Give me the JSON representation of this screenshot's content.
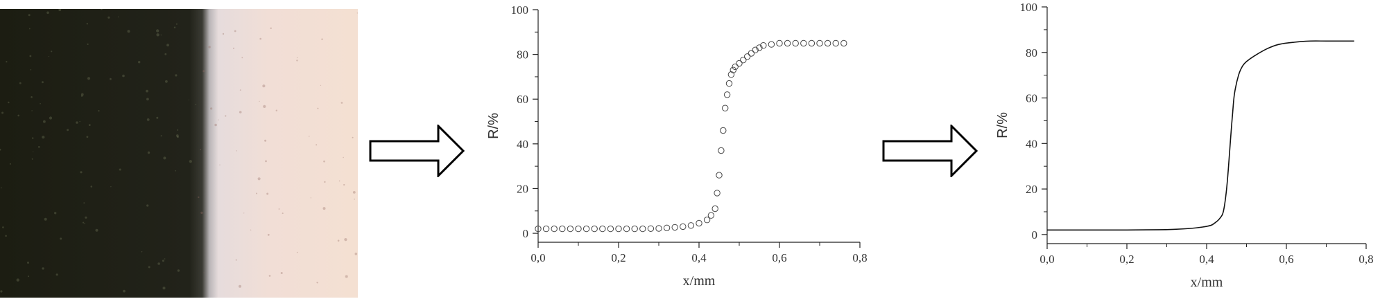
{
  "figure": {
    "photo": {
      "description_icon": "sample-edge-photo",
      "dark_color": "#1e1f14",
      "light_color": "#f0ddd4"
    },
    "arrow_icon": "right-arrow-outline-icon"
  },
  "chart_data": [
    {
      "type": "scatter",
      "xlabel": "x/mm",
      "ylabel": "R/%",
      "xlim": [
        0.0,
        0.8
      ],
      "ylim": [
        -4,
        100
      ],
      "xticks": [
        "0,0",
        "0,2",
        "0,4",
        "0,6",
        "0,8"
      ],
      "yticks": [
        "0",
        "20",
        "40",
        "60",
        "80",
        "100"
      ],
      "marker": "open-circle",
      "series": [
        {
          "x": [
            0.0,
            0.02,
            0.04,
            0.06,
            0.08,
            0.1,
            0.12,
            0.14,
            0.16,
            0.18,
            0.2,
            0.22,
            0.24,
            0.26,
            0.28,
            0.3,
            0.32,
            0.34,
            0.36,
            0.38,
            0.4,
            0.42,
            0.43,
            0.44,
            0.445,
            0.45,
            0.455,
            0.46,
            0.465,
            0.47,
            0.475,
            0.48,
            0.485,
            0.49,
            0.5,
            0.51,
            0.52,
            0.53,
            0.54,
            0.55,
            0.56,
            0.58,
            0.6,
            0.62,
            0.64,
            0.66,
            0.68,
            0.7,
            0.72,
            0.74,
            0.76
          ],
          "y": [
            2,
            2,
            2,
            2,
            2,
            2,
            2,
            2,
            2,
            2,
            2,
            2,
            2,
            2,
            2.1,
            2.2,
            2.4,
            2.7,
            3,
            3.5,
            4.5,
            6,
            8,
            11,
            18,
            26,
            37,
            46,
            56,
            62,
            67,
            71,
            73,
            74.5,
            76,
            77.5,
            79,
            80.5,
            82,
            83,
            84,
            84.5,
            85,
            85,
            85,
            85,
            85,
            85,
            85,
            85,
            85
          ]
        }
      ]
    },
    {
      "type": "line",
      "xlabel": "x/mm",
      "ylabel": "R/%",
      "xlim": [
        0.0,
        0.8
      ],
      "ylim": [
        -4,
        100
      ],
      "xticks": [
        "0,0",
        "0,2",
        "0,4",
        "0,6",
        "0,8"
      ],
      "yticks": [
        "0",
        "20",
        "40",
        "60",
        "80",
        "100"
      ],
      "series": [
        {
          "x": [
            0.0,
            0.1,
            0.2,
            0.28,
            0.32,
            0.36,
            0.39,
            0.41,
            0.42,
            0.43,
            0.44,
            0.445,
            0.45,
            0.455,
            0.46,
            0.465,
            0.47,
            0.48,
            0.49,
            0.5,
            0.52,
            0.55,
            0.58,
            0.62,
            0.66,
            0.7,
            0.74,
            0.77
          ],
          "y": [
            2,
            2,
            2,
            2.1,
            2.3,
            2.7,
            3.3,
            4,
            5,
            6.5,
            9,
            13,
            20,
            30,
            42,
            53,
            62,
            70,
            74,
            76,
            78.5,
            81.5,
            83.5,
            84.5,
            85,
            85,
            85,
            85
          ]
        }
      ]
    }
  ]
}
